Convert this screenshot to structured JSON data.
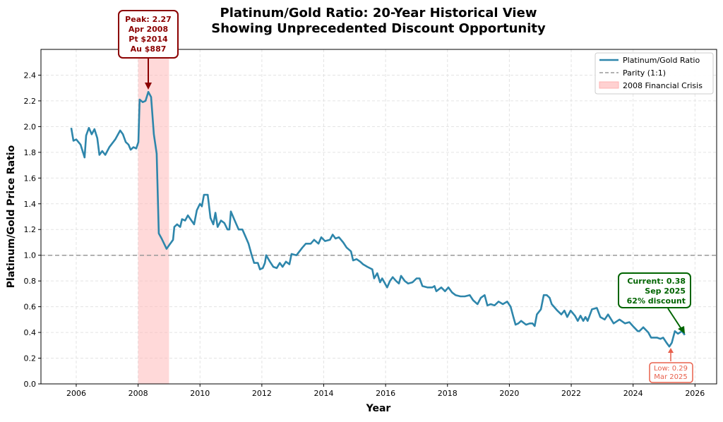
{
  "chart_data": {
    "type": "line",
    "title": "Platinum/Gold Ratio: 20-Year Historical View",
    "subtitle": "Showing Unprecedented Discount Opportunity",
    "xlabel": "Year",
    "ylabel": "Platinum/Gold Price Ratio",
    "xlim": [
      2004.86,
      2026.7
    ],
    "ylim": [
      0,
      2.6
    ],
    "xticks": [
      2006,
      2008,
      2010,
      2012,
      2014,
      2016,
      2018,
      2020,
      2022,
      2024,
      2026
    ],
    "yticks": [
      "0.0",
      "0.2",
      "0.4",
      "0.6",
      "0.8",
      "1.0",
      "1.2",
      "1.4",
      "1.6",
      "1.8",
      "2.0",
      "2.2",
      "2.4"
    ],
    "grid": true,
    "legend_position": "top-right",
    "colors": {
      "series": "#2e86ab",
      "parity": "#999999",
      "crisis": "#ffb3b3",
      "peak": "#8b0000",
      "current": "#006400",
      "low": "#e8604c"
    },
    "series": [
      {
        "name": "Platinum/Gold Ratio",
        "x": [
          2005.84,
          2005.91,
          2006.0,
          2006.14,
          2006.27,
          2006.32,
          2006.41,
          2006.5,
          2006.59,
          2006.68,
          2006.75,
          2006.84,
          2006.94,
          2007.07,
          2007.26,
          2007.42,
          2007.51,
          2007.6,
          2007.69,
          2007.76,
          2007.85,
          2007.94,
          2008.01,
          2008.05,
          2008.15,
          2008.24,
          2008.33,
          2008.42,
          2008.51,
          2008.6,
          2008.67,
          2008.76,
          2008.92,
          2009.01,
          2009.13,
          2009.17,
          2009.26,
          2009.36,
          2009.42,
          2009.52,
          2009.61,
          2009.81,
          2009.9,
          2010.0,
          2010.06,
          2010.13,
          2010.25,
          2010.34,
          2010.43,
          2010.5,
          2010.57,
          2010.68,
          2010.79,
          2010.89,
          2010.95,
          2011.0,
          2011.14,
          2011.25,
          2011.37,
          2011.48,
          2011.57,
          2011.66,
          2011.75,
          2011.87,
          2011.94,
          2012.03,
          2012.1,
          2012.14,
          2012.26,
          2012.37,
          2012.48,
          2012.58,
          2012.67,
          2012.78,
          2012.89,
          2012.96,
          2013.12,
          2013.31,
          2013.42,
          2013.58,
          2013.69,
          2013.83,
          2013.92,
          2014.04,
          2014.2,
          2014.29,
          2014.38,
          2014.49,
          2014.63,
          2014.74,
          2014.88,
          2014.95,
          2015.06,
          2015.18,
          2015.27,
          2015.41,
          2015.57,
          2015.63,
          2015.73,
          2015.82,
          2015.89,
          2016.05,
          2016.14,
          2016.23,
          2016.34,
          2016.43,
          2016.5,
          2016.62,
          2016.73,
          2016.87,
          2017.0,
          2017.1,
          2017.19,
          2017.35,
          2017.51,
          2017.58,
          2017.64,
          2017.8,
          2017.92,
          2018.03,
          2018.15,
          2018.26,
          2018.42,
          2018.56,
          2018.72,
          2018.83,
          2018.97,
          2019.08,
          2019.2,
          2019.29,
          2019.4,
          2019.52,
          2019.65,
          2019.79,
          2019.93,
          2020.04,
          2020.13,
          2020.2,
          2020.29,
          2020.38,
          2020.54,
          2020.66,
          2020.75,
          2020.82,
          2020.89,
          2021.02,
          2021.11,
          2021.21,
          2021.3,
          2021.37,
          2021.55,
          2021.68,
          2021.78,
          2021.87,
          2021.98,
          2022.12,
          2022.21,
          2022.3,
          2022.39,
          2022.46,
          2022.53,
          2022.67,
          2022.83,
          2022.94,
          2023.08,
          2023.19,
          2023.37,
          2023.56,
          2023.74,
          2023.88,
          2023.99,
          2024.15,
          2024.2,
          2024.33,
          2024.49,
          2024.58,
          2024.77,
          2024.88,
          2024.97,
          2025.08,
          2025.17,
          2025.25,
          2025.35,
          2025.45,
          2025.58,
          2025.67
        ],
        "y": [
          1.99,
          1.89,
          1.9,
          1.86,
          1.76,
          1.93,
          1.99,
          1.94,
          1.98,
          1.91,
          1.78,
          1.81,
          1.78,
          1.84,
          1.9,
          1.97,
          1.94,
          1.88,
          1.86,
          1.82,
          1.84,
          1.83,
          1.88,
          2.21,
          2.19,
          2.2,
          2.27,
          2.23,
          1.94,
          1.79,
          1.17,
          1.13,
          1.05,
          1.08,
          1.12,
          1.22,
          1.24,
          1.22,
          1.28,
          1.27,
          1.31,
          1.24,
          1.35,
          1.4,
          1.38,
          1.47,
          1.47,
          1.29,
          1.24,
          1.33,
          1.22,
          1.27,
          1.25,
          1.2,
          1.2,
          1.34,
          1.26,
          1.2,
          1.2,
          1.14,
          1.09,
          1.01,
          0.94,
          0.94,
          0.89,
          0.9,
          0.94,
          1.0,
          0.95,
          0.91,
          0.9,
          0.94,
          0.91,
          0.95,
          0.93,
          1.01,
          1.0,
          1.06,
          1.09,
          1.09,
          1.12,
          1.09,
          1.14,
          1.11,
          1.12,
          1.16,
          1.13,
          1.14,
          1.1,
          1.06,
          1.03,
          0.96,
          0.97,
          0.95,
          0.93,
          0.91,
          0.89,
          0.82,
          0.86,
          0.79,
          0.82,
          0.75,
          0.8,
          0.83,
          0.8,
          0.78,
          0.84,
          0.8,
          0.78,
          0.79,
          0.82,
          0.82,
          0.76,
          0.75,
          0.75,
          0.76,
          0.72,
          0.75,
          0.72,
          0.75,
          0.71,
          0.69,
          0.68,
          0.68,
          0.69,
          0.65,
          0.62,
          0.67,
          0.69,
          0.61,
          0.62,
          0.61,
          0.64,
          0.62,
          0.64,
          0.6,
          0.52,
          0.46,
          0.47,
          0.49,
          0.46,
          0.47,
          0.47,
          0.45,
          0.54,
          0.58,
          0.69,
          0.69,
          0.67,
          0.62,
          0.57,
          0.54,
          0.57,
          0.52,
          0.57,
          0.53,
          0.49,
          0.53,
          0.49,
          0.52,
          0.49,
          0.58,
          0.59,
          0.52,
          0.5,
          0.54,
          0.47,
          0.5,
          0.47,
          0.48,
          0.45,
          0.41,
          0.41,
          0.44,
          0.4,
          0.36,
          0.36,
          0.35,
          0.36,
          0.32,
          0.29,
          0.32,
          0.41,
          0.39,
          0.41,
          0.38
        ]
      }
    ],
    "reference_line": {
      "name": "Parity (1:1)",
      "y": 1.0
    },
    "shaded_region": {
      "name": "2008 Financial Crisis",
      "x": [
        2008.0,
        2009.0
      ]
    },
    "annotations": {
      "peak": {
        "lines": [
          "Peak: 2.27",
          "Apr 2008",
          "Pt $2014",
          "Au $887"
        ],
        "x": 2008.33,
        "y": 2.27
      },
      "current": {
        "lines": [
          "Current: 0.38",
          "Sep 2025",
          "62% discount"
        ],
        "x": 2025.67,
        "y": 0.38
      },
      "low": {
        "lines": [
          "Low: 0.29",
          "Mar 2025"
        ],
        "x": 2025.17,
        "y": 0.29
      }
    }
  }
}
